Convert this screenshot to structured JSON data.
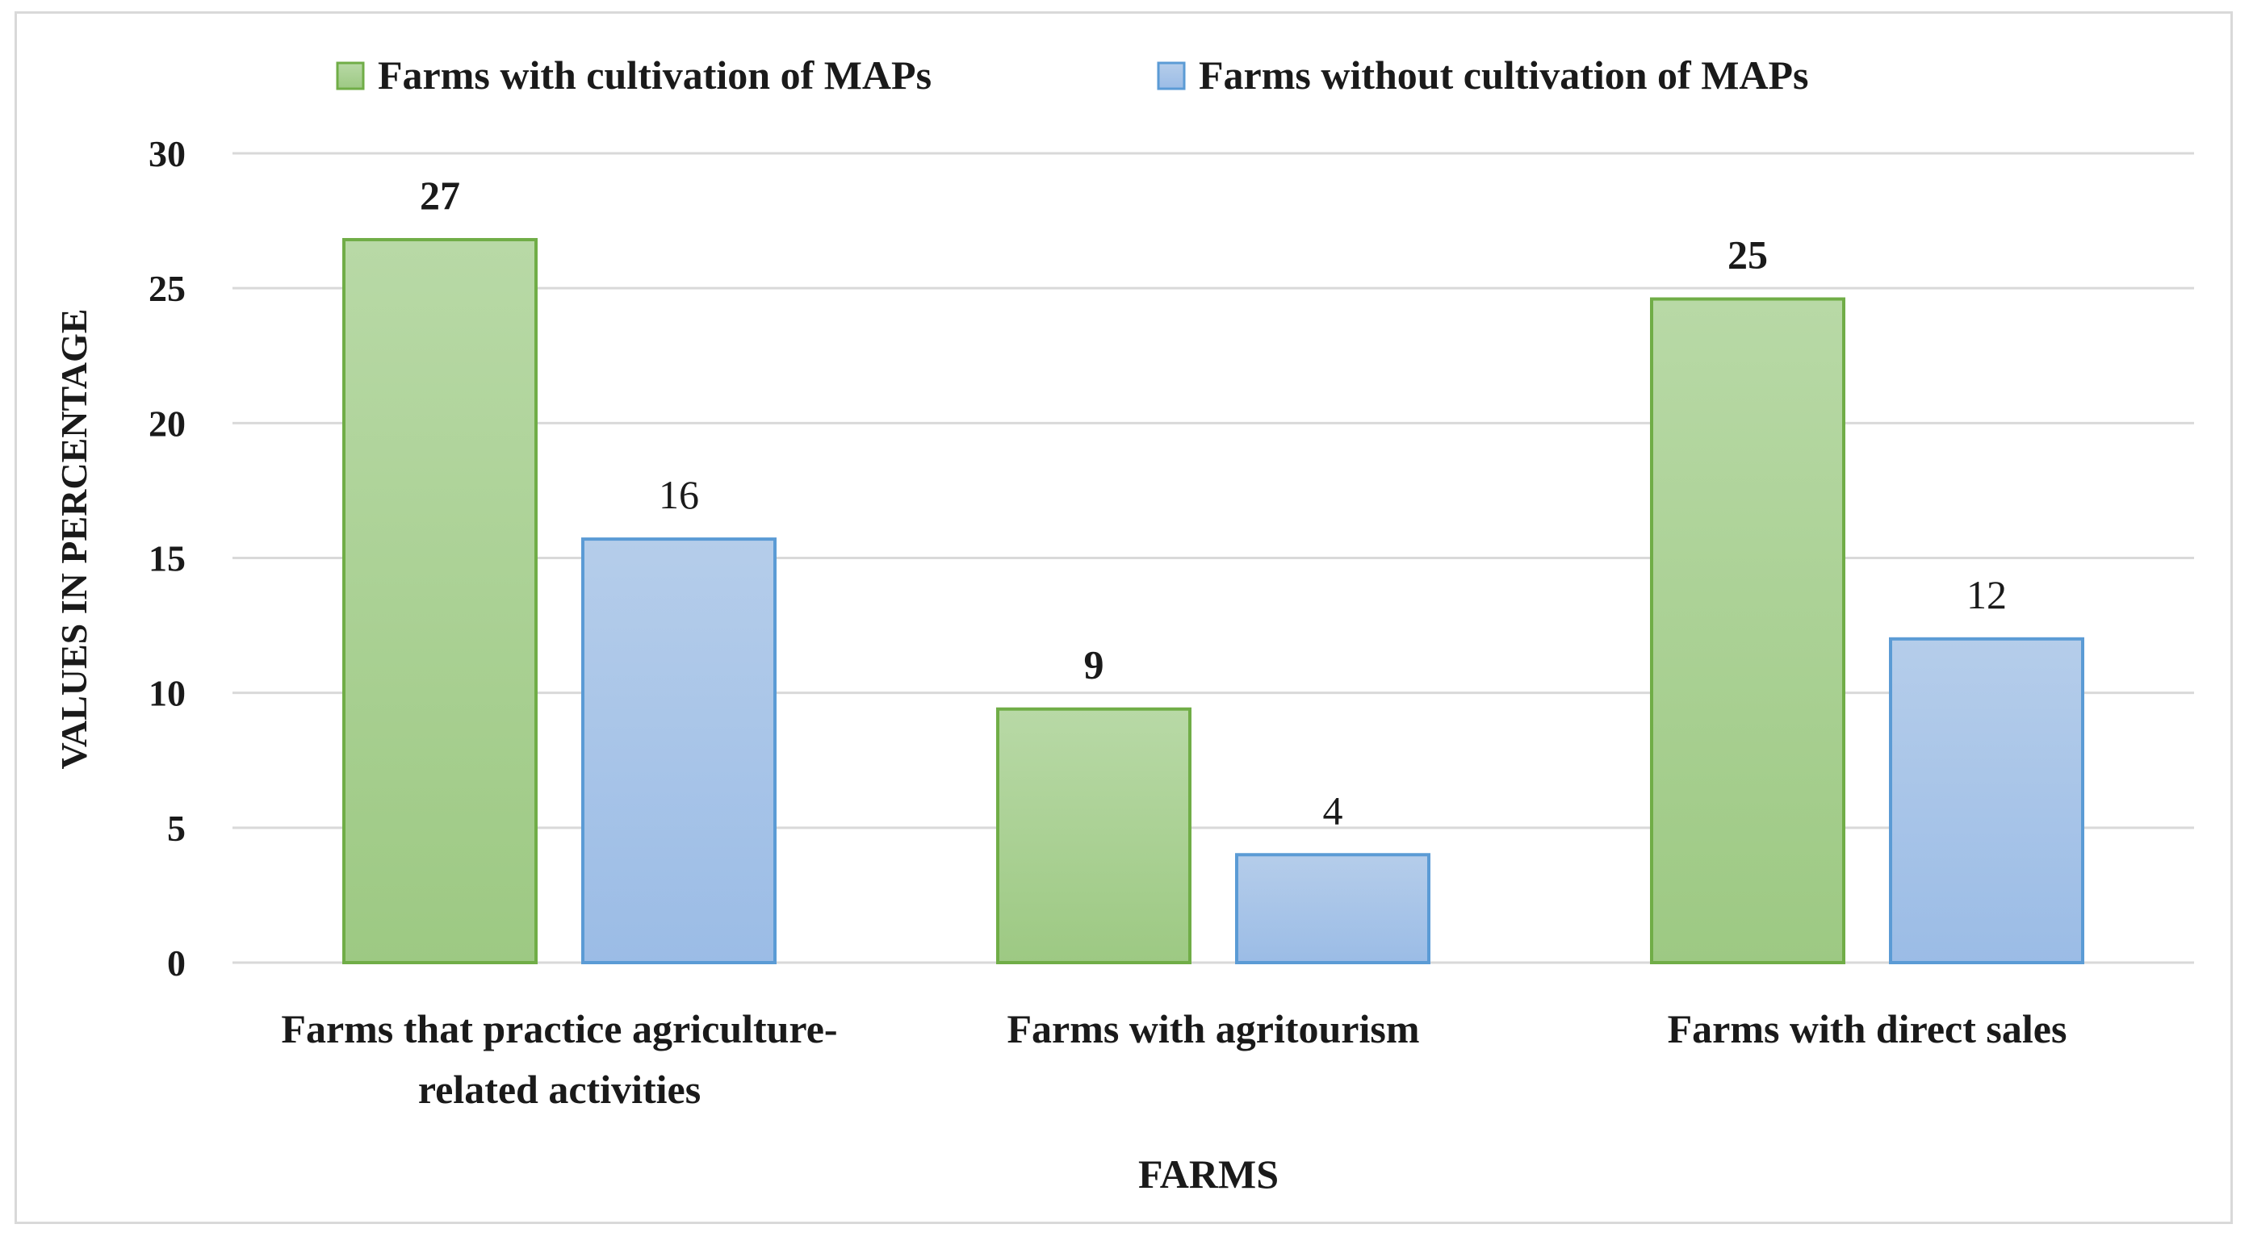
{
  "chart_data": {
    "type": "bar",
    "categories": [
      [
        "Farms that practice agriculture-",
        "related activities"
      ],
      [
        "Farms with agritourism"
      ],
      [
        "Farms with direct sales"
      ]
    ],
    "series": [
      {
        "name": "Farms with cultivation of MAPs",
        "values": [
          26.8,
          9.4,
          24.6
        ],
        "labels": [
          "27",
          "9",
          "25"
        ],
        "label_bold": true,
        "color_top": "#b8d9a6",
        "color_bottom": "#9dc983",
        "stroke": "#70ad47"
      },
      {
        "name": "Farms without cultivation of MAPs",
        "values": [
          15.7,
          4.0,
          12.0
        ],
        "labels": [
          "16",
          "4",
          "12"
        ],
        "label_bold": false,
        "color_top": "#b5cdea",
        "color_bottom": "#9bbce6",
        "stroke": "#5b9bd5"
      }
    ],
    "xlabel": "FARMS",
    "ylabel": "VALUES IN PERCENTAGE",
    "ylim": [
      0,
      30
    ],
    "yticks": [
      "0",
      "5",
      "10",
      "15",
      "20",
      "25",
      "30"
    ],
    "grid": true,
    "legend_position": "top",
    "gridline_color": "#d9d9d9"
  }
}
